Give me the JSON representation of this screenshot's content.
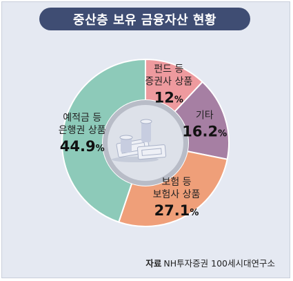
{
  "title": "중산층 보유 금융자산 현황",
  "source": {
    "label": "자료",
    "text": "NH투자증권 100세시대연구소"
  },
  "chart_data": {
    "type": "pie",
    "donut": true,
    "title": "중산층 보유 금융자산 현황",
    "slices": [
      {
        "label_lines": [
          "펀드 등",
          "증권사 상품"
        ],
        "value": 12,
        "display": "12",
        "color": "#ee9a9e"
      },
      {
        "label_lines": [
          "기타"
        ],
        "value": 16.2,
        "display": "16.2",
        "color": "#a67fa3"
      },
      {
        "label_lines": [
          "보험 등",
          "보험사 상품"
        ],
        "value": 27.1,
        "display": "27.1",
        "color": "#ef9f79"
      },
      {
        "label_lines": [
          "예적금 등",
          "은행권 상품"
        ],
        "value": 44.9,
        "display": "44.9",
        "color": "#8dcab9"
      }
    ],
    "unit": "%",
    "center_icon": "money-coins-icon"
  }
}
